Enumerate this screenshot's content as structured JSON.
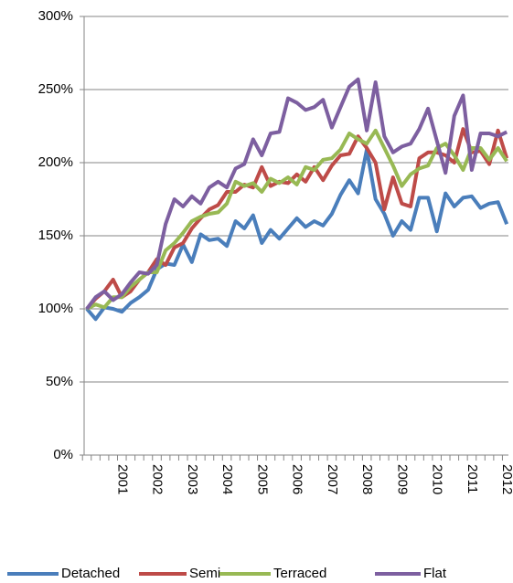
{
  "chart_data": {
    "type": "line",
    "categories": [
      null,
      null,
      null,
      null,
      "2001",
      null,
      null,
      null,
      "2002",
      null,
      null,
      null,
      "2003",
      null,
      null,
      null,
      "2004",
      null,
      null,
      null,
      "2005",
      null,
      null,
      null,
      "2006",
      null,
      null,
      null,
      "2007",
      null,
      null,
      null,
      "2008",
      null,
      null,
      null,
      "2009",
      null,
      null,
      null,
      "2010",
      null,
      null,
      null,
      "2011",
      null,
      null,
      null,
      "2012"
    ],
    "series": [
      {
        "name": "Detached",
        "color": "#4a7ebb",
        "values": [
          100,
          93,
          101,
          100,
          98,
          104,
          108,
          113,
          127,
          131,
          130,
          144,
          132,
          151,
          147,
          148,
          143,
          160,
          155,
          164,
          145,
          154,
          148,
          155,
          162,
          156,
          160,
          157,
          165,
          178,
          188,
          179,
          209,
          175,
          165,
          150,
          160,
          154,
          176,
          176,
          153,
          179,
          170,
          176,
          177,
          169,
          172,
          173,
          158
        ]
      },
      {
        "name": "Semi",
        "color": "#be4b48",
        "values": [
          100,
          107,
          112,
          120,
          108,
          112,
          120,
          125,
          134,
          130,
          142,
          145,
          155,
          162,
          168,
          171,
          180,
          180,
          185,
          183,
          197,
          184,
          187,
          186,
          192,
          187,
          197,
          188,
          198,
          205,
          206,
          218,
          210,
          200,
          168,
          190,
          172,
          170,
          203,
          207,
          207,
          205,
          200,
          223,
          207,
          208,
          199,
          222,
          203
        ]
      },
      {
        "name": "Terraced",
        "color": "#98b954",
        "values": [
          100,
          103,
          101,
          108,
          108,
          115,
          120,
          125,
          125,
          140,
          145,
          152,
          160,
          163,
          165,
          166,
          172,
          187,
          184,
          186,
          180,
          189,
          186,
          190,
          185,
          197,
          195,
          202,
          203,
          209,
          220,
          216,
          213,
          222,
          210,
          198,
          184,
          192,
          196,
          198,
          210,
          213,
          205,
          195,
          210,
          210,
          202,
          210,
          201
        ]
      },
      {
        "name": "Flat",
        "color": "#7d5fa0",
        "values": [
          100,
          108,
          112,
          106,
          110,
          118,
          125,
          124,
          130,
          158,
          175,
          170,
          177,
          172,
          183,
          187,
          183,
          196,
          199,
          216,
          205,
          220,
          221,
          244,
          241,
          236,
          238,
          243,
          224,
          238,
          252,
          257,
          222,
          255,
          218,
          207,
          211,
          213,
          223,
          237,
          215,
          193,
          232,
          246,
          195,
          220,
          220,
          218,
          221
        ]
      }
    ],
    "ylim": [
      0,
      300
    ],
    "yticks": [
      {
        "value": 0,
        "label": "0%"
      },
      {
        "value": 50,
        "label": "50%"
      },
      {
        "value": 100,
        "label": "100%"
      },
      {
        "value": 150,
        "label": "150%"
      },
      {
        "value": 200,
        "label": "200%"
      },
      {
        "value": 250,
        "label": "250%"
      },
      {
        "value": 300,
        "label": "300%"
      }
    ],
    "grid": true
  }
}
